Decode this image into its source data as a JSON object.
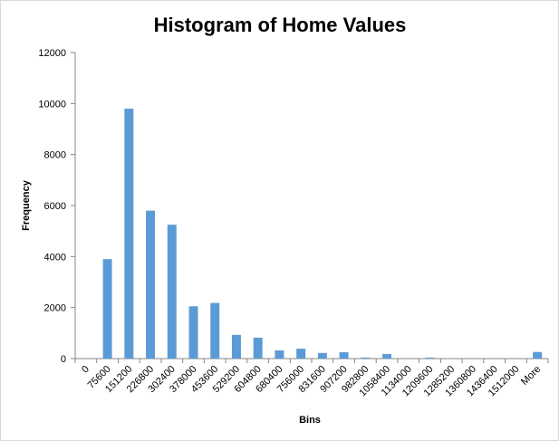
{
  "chart_data": {
    "type": "bar",
    "title": "Histogram of Home Values",
    "xlabel": "Bins",
    "ylabel": "Frequency",
    "ylim": [
      0,
      12000
    ],
    "yticks": [
      "0",
      "2000",
      "4000",
      "6000",
      "8000",
      "10000",
      "12000"
    ],
    "grid": false,
    "legend": "none",
    "bar_color": "#5b9bd5",
    "categories": [
      "0",
      "75600",
      "151200",
      "226800",
      "302400",
      "378000",
      "453600",
      "529200",
      "604800",
      "680400",
      "756000",
      "831600",
      "907200",
      "982800",
      "1058400",
      "1134000",
      "1209600",
      "1285200",
      "1360800",
      "1436400",
      "1512000",
      "More"
    ],
    "values": [
      0,
      3900,
      9800,
      5800,
      5250,
      2050,
      2180,
      930,
      820,
      320,
      390,
      220,
      250,
      40,
      180,
      10,
      40,
      10,
      5,
      5,
      5,
      260
    ]
  }
}
